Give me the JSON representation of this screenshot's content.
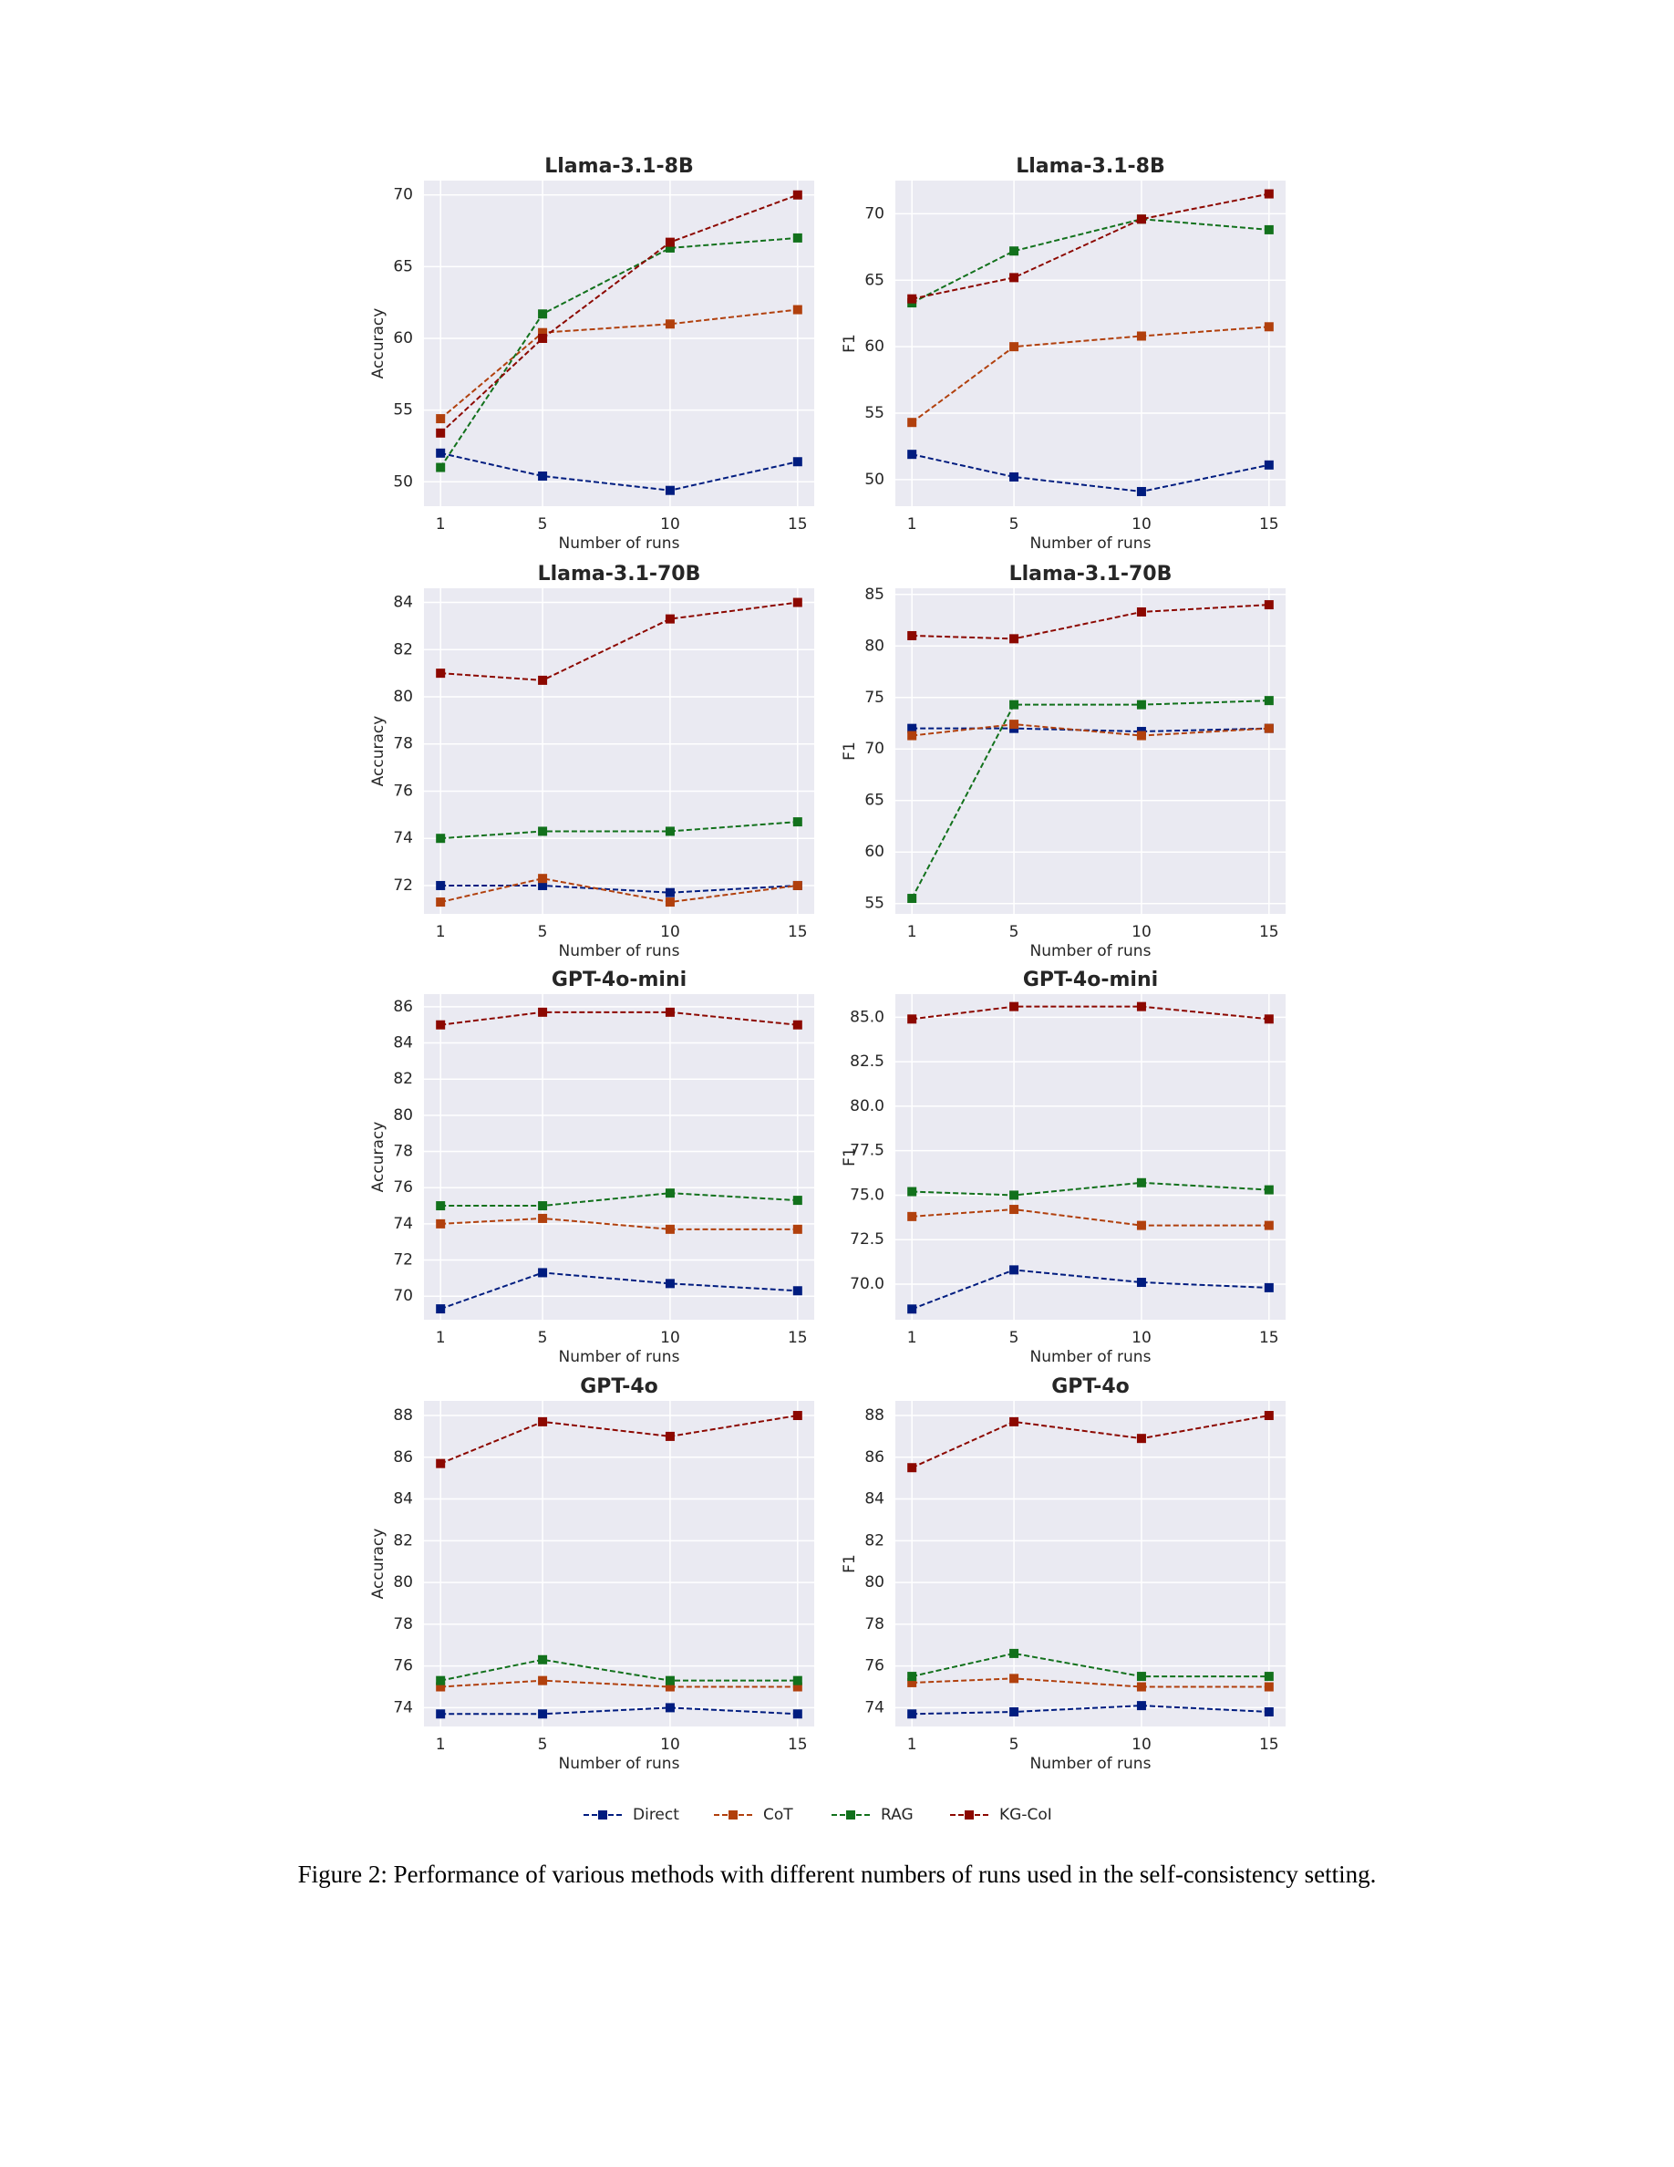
{
  "chart_data": [
    {
      "type": "line",
      "title": "Llama-3.1-8B",
      "xlabel": "Number of runs",
      "ylabel": "Accuracy",
      "x": [
        1,
        5,
        10,
        15
      ],
      "xlim": [
        0.35,
        15.65
      ],
      "xticks": [
        1,
        5,
        10,
        15
      ],
      "ylim": [
        48.3,
        71
      ],
      "yticks": [
        50,
        55,
        60,
        65,
        70
      ],
      "grid": true,
      "series": [
        {
          "name": "Direct",
          "color": "#001c7f",
          "values": [
            52,
            50.4,
            49.4,
            51.4
          ]
        },
        {
          "name": "CoT",
          "color": "#b1400d",
          "values": [
            54.4,
            60.4,
            61,
            62
          ]
        },
        {
          "name": "RAG",
          "color": "#12711c",
          "values": [
            51,
            61.7,
            66.3,
            67
          ]
        },
        {
          "name": "KG-CoI",
          "color": "#8c0800",
          "values": [
            53.4,
            60,
            66.7,
            70
          ]
        }
      ]
    },
    {
      "type": "line",
      "title": "Llama-3.1-8B",
      "xlabel": "Number of runs",
      "ylabel": "F1",
      "x": [
        1,
        5,
        10,
        15
      ],
      "xlim": [
        0.35,
        15.65
      ],
      "xticks": [
        1,
        5,
        10,
        15
      ],
      "ylim": [
        48,
        72.5
      ],
      "yticks": [
        50,
        55,
        60,
        65,
        70
      ],
      "grid": true,
      "series": [
        {
          "name": "Direct",
          "color": "#001c7f",
          "values": [
            51.9,
            50.2,
            49.1,
            51.1
          ]
        },
        {
          "name": "CoT",
          "color": "#b1400d",
          "values": [
            54.3,
            60,
            60.8,
            61.5
          ]
        },
        {
          "name": "RAG",
          "color": "#12711c",
          "values": [
            63.3,
            67.2,
            69.6,
            68.8
          ]
        },
        {
          "name": "KG-CoI",
          "color": "#8c0800",
          "values": [
            63.6,
            65.2,
            69.6,
            71.5
          ]
        }
      ]
    },
    {
      "type": "line",
      "title": "Llama-3.1-70B",
      "xlabel": "Number of runs",
      "ylabel": "Accuracy",
      "x": [
        1,
        5,
        10,
        15
      ],
      "xlim": [
        0.35,
        15.65
      ],
      "xticks": [
        1,
        5,
        10,
        15
      ],
      "ylim": [
        70.8,
        84.6
      ],
      "yticks": [
        72,
        74,
        76,
        78,
        80,
        82,
        84
      ],
      "grid": true,
      "series": [
        {
          "name": "Direct",
          "color": "#001c7f",
          "values": [
            72,
            72,
            71.7,
            72
          ]
        },
        {
          "name": "CoT",
          "color": "#b1400d",
          "values": [
            71.3,
            72.3,
            71.3,
            72
          ]
        },
        {
          "name": "RAG",
          "color": "#12711c",
          "values": [
            74,
            74.3,
            74.3,
            74.7
          ]
        },
        {
          "name": "KG-CoI",
          "color": "#8c0800",
          "values": [
            81,
            80.7,
            83.3,
            84
          ]
        }
      ]
    },
    {
      "type": "line",
      "title": "Llama-3.1-70B",
      "xlabel": "Number of runs",
      "ylabel": "F1",
      "x": [
        1,
        5,
        10,
        15
      ],
      "xlim": [
        0.35,
        15.65
      ],
      "xticks": [
        1,
        5,
        10,
        15
      ],
      "ylim": [
        54,
        85.6
      ],
      "yticks": [
        55,
        60,
        65,
        70,
        75,
        80,
        85
      ],
      "grid": true,
      "series": [
        {
          "name": "Direct",
          "color": "#001c7f",
          "values": [
            72,
            72,
            71.7,
            72
          ]
        },
        {
          "name": "CoT",
          "color": "#b1400d",
          "values": [
            71.3,
            72.4,
            71.3,
            72
          ]
        },
        {
          "name": "RAG",
          "color": "#12711c",
          "values": [
            55.5,
            74.3,
            74.3,
            74.7
          ]
        },
        {
          "name": "KG-CoI",
          "color": "#8c0800",
          "values": [
            81,
            80.7,
            83.3,
            84
          ]
        }
      ]
    },
    {
      "type": "line",
      "title": "GPT-4o-mini",
      "xlabel": "Number of runs",
      "ylabel": "Accuracy",
      "x": [
        1,
        5,
        10,
        15
      ],
      "xlim": [
        0.35,
        15.65
      ],
      "xticks": [
        1,
        5,
        10,
        15
      ],
      "ylim": [
        68.7,
        86.7
      ],
      "yticks": [
        70,
        72,
        74,
        76,
        78,
        80,
        82,
        84,
        86
      ],
      "grid": true,
      "series": [
        {
          "name": "Direct",
          "color": "#001c7f",
          "values": [
            69.3,
            71.3,
            70.7,
            70.3
          ]
        },
        {
          "name": "CoT",
          "color": "#b1400d",
          "values": [
            74,
            74.3,
            73.7,
            73.7
          ]
        },
        {
          "name": "RAG",
          "color": "#12711c",
          "values": [
            75,
            75,
            75.7,
            75.3
          ]
        },
        {
          "name": "KG-CoI",
          "color": "#8c0800",
          "values": [
            85,
            85.7,
            85.7,
            85
          ]
        }
      ]
    },
    {
      "type": "line",
      "title": "GPT-4o-mini",
      "xlabel": "Number of runs",
      "ylabel": "F1",
      "x": [
        1,
        5,
        10,
        15
      ],
      "xlim": [
        0.35,
        15.65
      ],
      "xticks": [
        1,
        5,
        10,
        15
      ],
      "ylim": [
        68,
        86.3
      ],
      "yticks": [
        {
          "value": 70,
          "label": "70.0"
        },
        {
          "value": 72.5,
          "label": "72.5"
        },
        {
          "value": 75,
          "label": "75.0"
        },
        {
          "value": 77.5,
          "label": "77.5"
        },
        {
          "value": 80,
          "label": "80.0"
        },
        {
          "value": 82.5,
          "label": "82.5"
        },
        {
          "value": 85,
          "label": "85.0"
        }
      ],
      "grid": true,
      "series": [
        {
          "name": "Direct",
          "color": "#001c7f",
          "values": [
            68.6,
            70.8,
            70.1,
            69.8
          ]
        },
        {
          "name": "CoT",
          "color": "#b1400d",
          "values": [
            73.8,
            74.2,
            73.3,
            73.3
          ]
        },
        {
          "name": "RAG",
          "color": "#12711c",
          "values": [
            75.2,
            75,
            75.7,
            75.3
          ]
        },
        {
          "name": "KG-CoI",
          "color": "#8c0800",
          "values": [
            84.9,
            85.6,
            85.6,
            84.9
          ]
        }
      ]
    },
    {
      "type": "line",
      "title": "GPT-4o",
      "xlabel": "Number of runs",
      "ylabel": "Accuracy",
      "x": [
        1,
        5,
        10,
        15
      ],
      "xlim": [
        0.35,
        15.65
      ],
      "xticks": [
        1,
        5,
        10,
        15
      ],
      "ylim": [
        73.1,
        88.7
      ],
      "yticks": [
        74,
        76,
        78,
        80,
        82,
        84,
        86,
        88
      ],
      "grid": true,
      "series": [
        {
          "name": "Direct",
          "color": "#001c7f",
          "values": [
            73.7,
            73.7,
            74,
            73.7
          ]
        },
        {
          "name": "CoT",
          "color": "#b1400d",
          "values": [
            75,
            75.3,
            75,
            75
          ]
        },
        {
          "name": "RAG",
          "color": "#12711c",
          "values": [
            75.3,
            76.3,
            75.3,
            75.3
          ]
        },
        {
          "name": "KG-CoI",
          "color": "#8c0800",
          "values": [
            85.7,
            87.7,
            87,
            88
          ]
        }
      ]
    },
    {
      "type": "line",
      "title": "GPT-4o",
      "xlabel": "Number of runs",
      "ylabel": "F1",
      "x": [
        1,
        5,
        10,
        15
      ],
      "xlim": [
        0.35,
        15.65
      ],
      "xticks": [
        1,
        5,
        10,
        15
      ],
      "ylim": [
        73.1,
        88.7
      ],
      "yticks": [
        74,
        76,
        78,
        80,
        82,
        84,
        86,
        88
      ],
      "grid": true,
      "series": [
        {
          "name": "Direct",
          "color": "#001c7f",
          "values": [
            73.7,
            73.8,
            74.1,
            73.8
          ]
        },
        {
          "name": "CoT",
          "color": "#b1400d",
          "values": [
            75.2,
            75.4,
            75,
            75
          ]
        },
        {
          "name": "RAG",
          "color": "#12711c",
          "values": [
            75.5,
            76.6,
            75.5,
            75.5
          ]
        },
        {
          "name": "KG-CoI",
          "color": "#8c0800",
          "values": [
            85.5,
            87.7,
            86.9,
            88
          ]
        }
      ]
    }
  ],
  "caption": "Figure 2: Performance of various methods with different numbers of runs used in the self-consistency setting."
}
